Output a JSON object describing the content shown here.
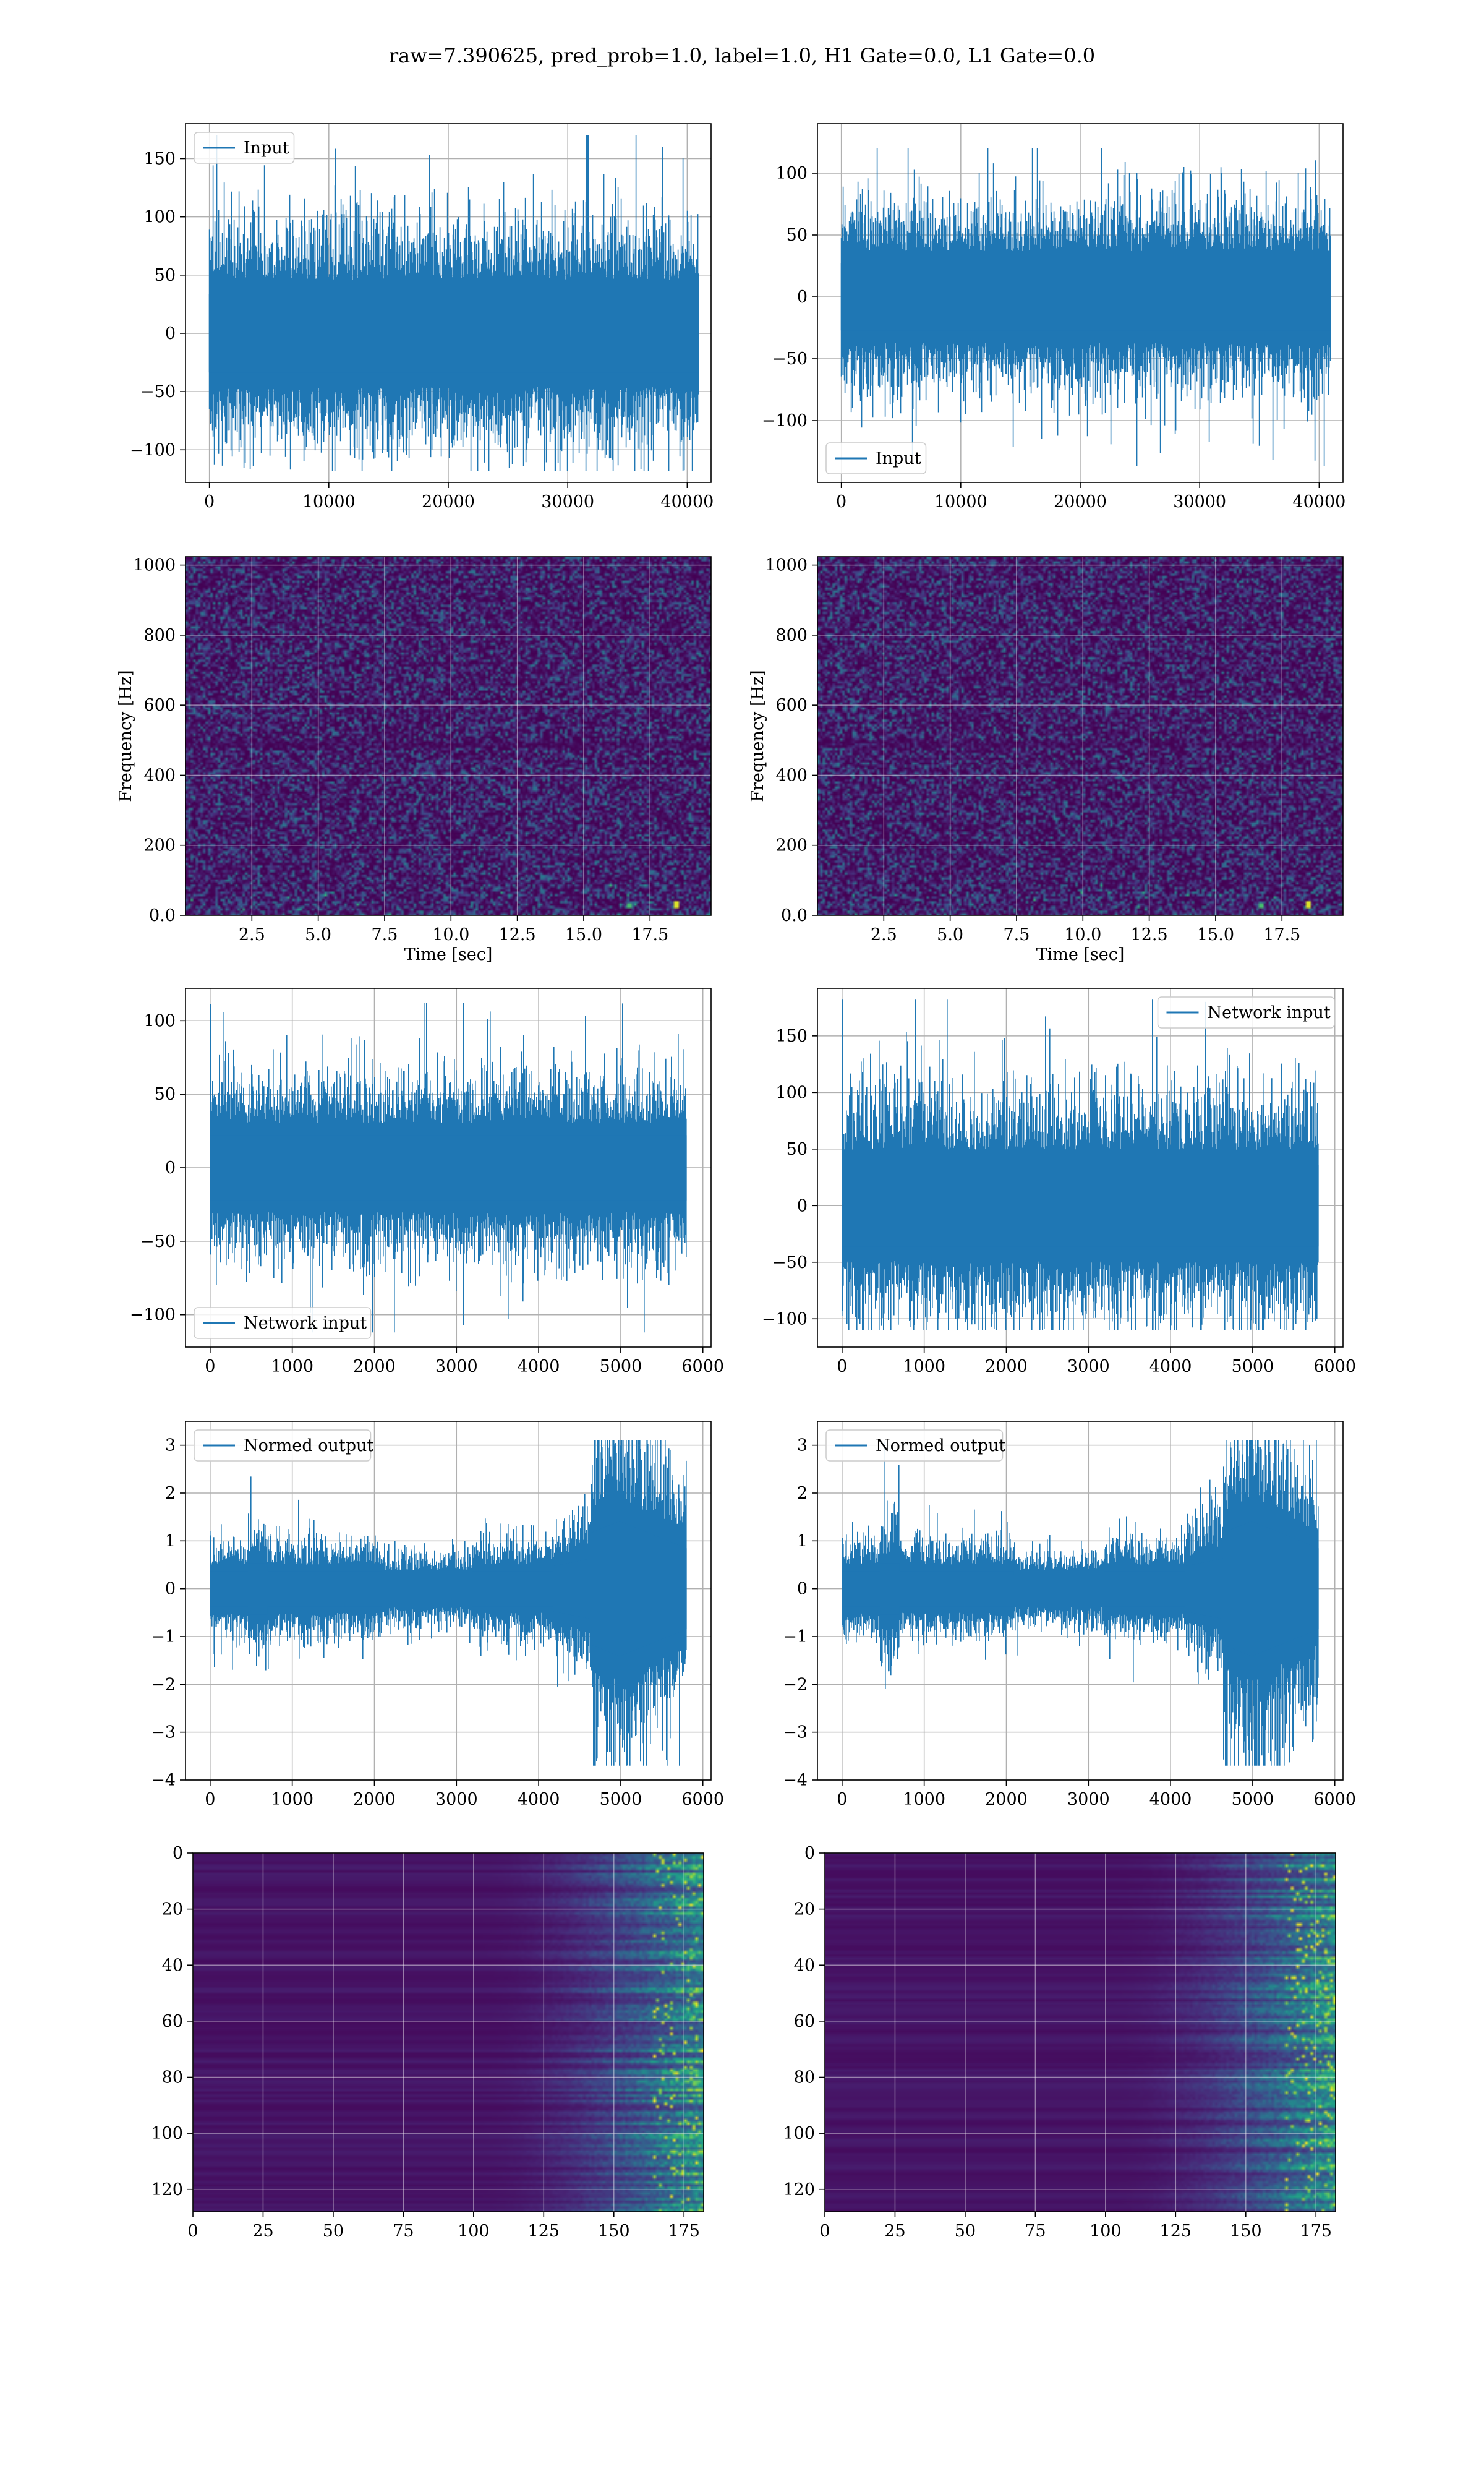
{
  "figure": {
    "title": "raw=7.390625, pred_prob=1.0, label=1.0, H1 Gate=0.0, L1 Gate=0.0",
    "line_color": "#1f77b4"
  },
  "chart_data": [
    {
      "id": "input-h1",
      "type": "line",
      "series": [
        {
          "name": "Input",
          "samples": 40960,
          "amplitude_range": [
            -118,
            170
          ]
        }
      ],
      "x": {
        "ticks": [
          0,
          10000,
          20000,
          30000,
          40000
        ],
        "range": [
          -2000,
          42000
        ]
      },
      "y": {
        "ticks": [
          -100,
          -50,
          0,
          50,
          100,
          150
        ],
        "range": [
          -128,
          180
        ]
      },
      "legend": "upper left",
      "grid": true
    },
    {
      "id": "input-l1",
      "type": "line",
      "series": [
        {
          "name": "Input",
          "samples": 40960,
          "amplitude_range": [
            -137,
            120
          ]
        }
      ],
      "x": {
        "ticks": [
          0,
          10000,
          20000,
          30000,
          40000
        ],
        "range": [
          -2000,
          42000
        ]
      },
      "y": {
        "ticks": [
          -100,
          -50,
          0,
          50,
          100
        ],
        "range": [
          -150,
          140
        ]
      },
      "legend": "lower left",
      "grid": true
    },
    {
      "id": "spectrogram-h1",
      "type": "heatmap",
      "colormap": "viridis",
      "x": {
        "ticks": [
          2.5,
          5.0,
          7.5,
          10.0,
          12.5,
          15.0,
          17.5
        ],
        "range": [
          0,
          19.8
        ]
      },
      "y": {
        "ticks": [
          0,
          200,
          400,
          600,
          800,
          1000
        ],
        "range": [
          0,
          1024
        ]
      },
      "xlabel": "Time [sec]",
      "ylabel": "Frequency [Hz]",
      "grid": true
    },
    {
      "id": "spectrogram-l1",
      "type": "heatmap",
      "colormap": "viridis",
      "x": {
        "ticks": [
          2.5,
          5.0,
          7.5,
          10.0,
          12.5,
          15.0,
          17.5
        ],
        "range": [
          0,
          19.8
        ]
      },
      "y": {
        "ticks": [
          0,
          200,
          400,
          600,
          800,
          1000
        ],
        "range": [
          0,
          1024
        ]
      },
      "xlabel": "Time [sec]",
      "ylabel": "Frequency [Hz]",
      "grid": true
    },
    {
      "id": "network-input-h1",
      "type": "line",
      "series": [
        {
          "name": "Network input",
          "samples": 5800,
          "amplitude_range": [
            -112,
            112
          ]
        }
      ],
      "x": {
        "ticks": [
          0,
          1000,
          2000,
          3000,
          4000,
          5000,
          6000
        ],
        "range": [
          -300,
          6100
        ]
      },
      "y": {
        "ticks": [
          -100,
          -50,
          0,
          50,
          100
        ],
        "range": [
          -122,
          122
        ]
      },
      "legend": "lower left",
      "grid": true
    },
    {
      "id": "network-input-l1",
      "type": "line",
      "series": [
        {
          "name": "Network input",
          "samples": 5800,
          "amplitude_range": [
            -110,
            182
          ]
        }
      ],
      "x": {
        "ticks": [
          0,
          1000,
          2000,
          3000,
          4000,
          5000,
          6000
        ],
        "range": [
          -300,
          6100
        ]
      },
      "y": {
        "ticks": [
          -100,
          -50,
          0,
          50,
          100,
          150
        ],
        "range": [
          -125,
          192
        ]
      },
      "legend": "upper right",
      "grid": true
    },
    {
      "id": "normed-output-h1",
      "type": "line",
      "series": [
        {
          "name": "Normed output",
          "samples": 5800,
          "amplitude_range": [
            -3.7,
            3.1
          ]
        }
      ],
      "x": {
        "ticks": [
          0,
          1000,
          2000,
          3000,
          4000,
          5000,
          6000
        ],
        "range": [
          -300,
          6100
        ]
      },
      "y": {
        "ticks": [
          -4,
          -3,
          -2,
          -1,
          0,
          1,
          2,
          3
        ],
        "range": [
          -4.0,
          3.5
        ]
      },
      "legend": "upper left",
      "grid": true
    },
    {
      "id": "normed-output-l1",
      "type": "line",
      "series": [
        {
          "name": "Normed output",
          "samples": 5800,
          "amplitude_range": [
            -3.7,
            3.1
          ]
        }
      ],
      "x": {
        "ticks": [
          0,
          1000,
          2000,
          3000,
          4000,
          5000,
          6000
        ],
        "range": [
          -300,
          6100
        ]
      },
      "y": {
        "ticks": [
          -4,
          -3,
          -2,
          -1,
          0,
          1,
          2,
          3
        ],
        "range": [
          -4.0,
          3.5
        ]
      },
      "legend": "upper left",
      "grid": true
    },
    {
      "id": "activation-map-h1",
      "type": "heatmap",
      "colormap": "viridis",
      "x": {
        "ticks": [
          0,
          25,
          50,
          75,
          100,
          125,
          150,
          175
        ],
        "range": [
          0,
          182
        ]
      },
      "y": {
        "ticks": [
          0,
          20,
          40,
          60,
          80,
          100,
          120
        ],
        "range": [
          0,
          128
        ],
        "inverted": true
      },
      "grid": true
    },
    {
      "id": "activation-map-l1",
      "type": "heatmap",
      "colormap": "viridis",
      "x": {
        "ticks": [
          0,
          25,
          50,
          75,
          100,
          125,
          150,
          175
        ],
        "range": [
          0,
          182
        ]
      },
      "y": {
        "ticks": [
          0,
          20,
          40,
          60,
          80,
          100,
          120
        ],
        "range": [
          0,
          128
        ],
        "inverted": true
      },
      "grid": true
    }
  ]
}
